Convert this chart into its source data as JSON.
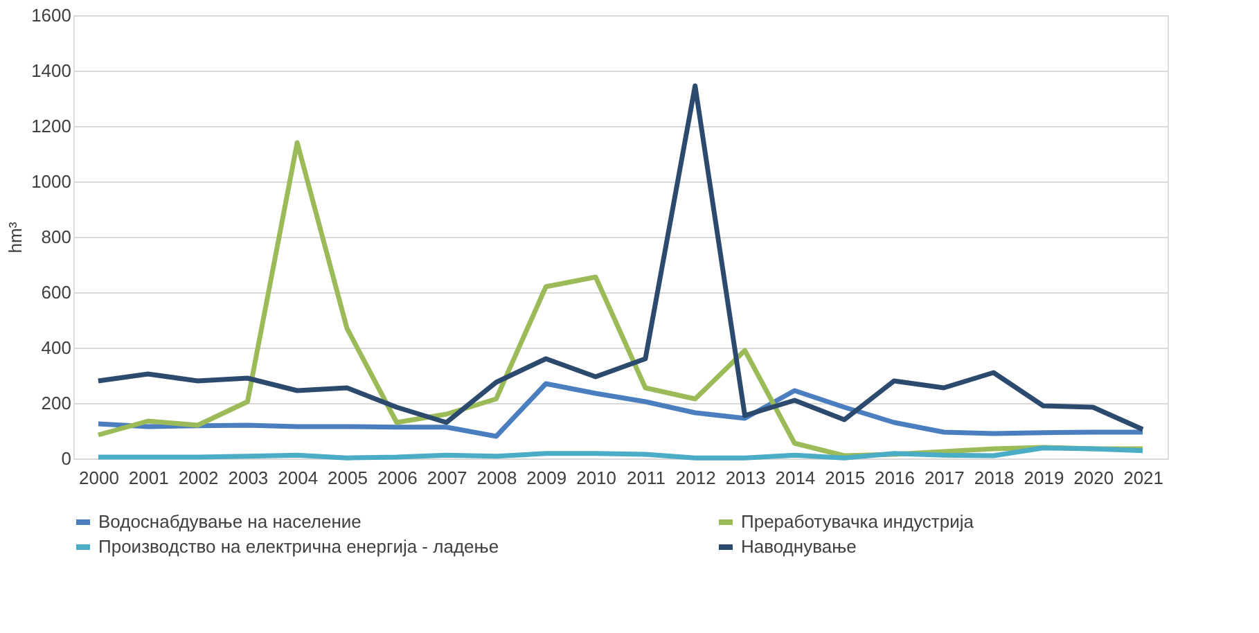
{
  "chart_data": {
    "type": "line",
    "ylabel": "hm³",
    "categories": [
      "2000",
      "2001",
      "2002",
      "2003",
      "2004",
      "2005",
      "2006",
      "2007",
      "2008",
      "2009",
      "2010",
      "2011",
      "2012",
      "2013",
      "2014",
      "2015",
      "2016",
      "2017",
      "2018",
      "2019",
      "2020",
      "2021"
    ],
    "series": [
      {
        "name": "Водоснабдување на население",
        "color": "#4a7ebf",
        "values": [
          125,
          115,
          118,
          120,
          115,
          115,
          113,
          113,
          80,
          270,
          235,
          205,
          165,
          145,
          245,
          185,
          130,
          95,
          90,
          93,
          95,
          95
        ]
      },
      {
        "name": "Преработувачка индустрија",
        "color": "#9bbb59",
        "values": [
          85,
          135,
          120,
          205,
          1140,
          470,
          130,
          160,
          215,
          620,
          655,
          255,
          215,
          390,
          55,
          10,
          15,
          25,
          35,
          40,
          35,
          35
        ]
      },
      {
        "name": "Производство на електрична енергија - ладење",
        "color": "#4bacc6",
        "values": [
          5,
          5,
          5,
          8,
          12,
          2,
          5,
          12,
          8,
          18,
          18,
          15,
          2,
          2,
          12,
          2,
          18,
          12,
          10,
          38,
          35,
          28
        ]
      },
      {
        "name": "Наводнување",
        "color": "#2c4a6e",
        "values": [
          280,
          305,
          280,
          290,
          245,
          255,
          185,
          130,
          275,
          360,
          295,
          360,
          1345,
          155,
          210,
          140,
          280,
          255,
          310,
          190,
          185,
          105
        ]
      }
    ],
    "ylim": [
      0,
      1600
    ],
    "yticks": [
      0,
      200,
      400,
      600,
      800,
      1000,
      1200,
      1400,
      1600
    ],
    "grid": "y",
    "legend": "bottom",
    "marker": "none",
    "line_style": "solid"
  }
}
